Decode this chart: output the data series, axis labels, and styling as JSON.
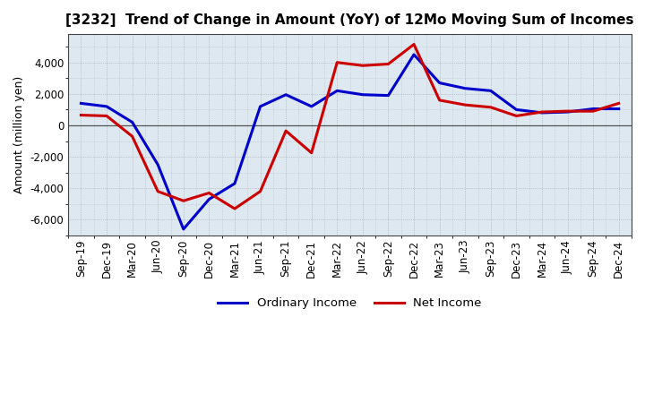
{
  "title": "[3232]  Trend of Change in Amount (YoY) of 12Mo Moving Sum of Incomes",
  "ylabel": "Amount (million yen)",
  "x_labels": [
    "Sep-19",
    "Dec-19",
    "Mar-20",
    "Jun-20",
    "Sep-20",
    "Dec-20",
    "Mar-21",
    "Jun-21",
    "Sep-21",
    "Dec-21",
    "Mar-22",
    "Jun-22",
    "Sep-22",
    "Dec-22",
    "Mar-23",
    "Jun-23",
    "Sep-23",
    "Dec-23",
    "Mar-24",
    "Jun-24",
    "Sep-24",
    "Dec-24"
  ],
  "ordinary_income": [
    1400,
    1200,
    200,
    -2500,
    -6600,
    -4700,
    -3700,
    1200,
    1950,
    1200,
    2200,
    1950,
    1900,
    4500,
    2700,
    2350,
    2200,
    1000,
    800,
    850,
    1050,
    1050
  ],
  "net_income": [
    650,
    600,
    -700,
    -4200,
    -4800,
    -4300,
    -5300,
    -4200,
    -350,
    -1750,
    4000,
    3800,
    3900,
    5150,
    1600,
    1300,
    1150,
    600,
    850,
    900,
    900,
    1400
  ],
  "ordinary_color": "#0000cc",
  "net_color": "#cc0000",
  "ylim": [
    -7000,
    5800
  ],
  "yticks": [
    -6000,
    -4000,
    -2000,
    0,
    2000,
    4000
  ],
  "plot_bgcolor": "#dde8f0",
  "fig_bgcolor": "#ffffff",
  "grid_color": "#888888",
  "legend_ordinary": "Ordinary Income",
  "legend_net": "Net Income",
  "line_width": 2.2
}
